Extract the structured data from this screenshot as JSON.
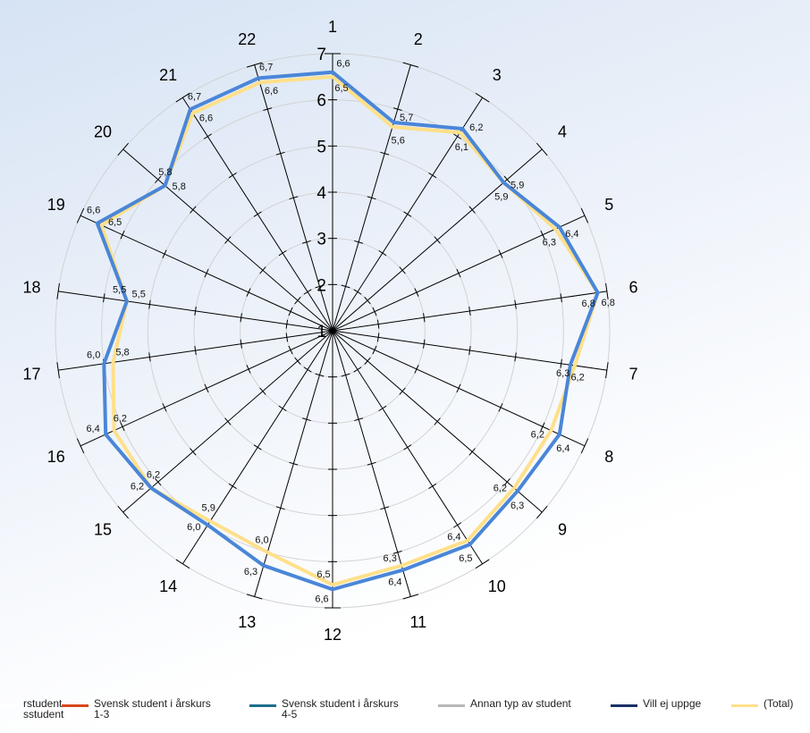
{
  "chart_data": {
    "type": "radar",
    "rmin": 1,
    "rmax": 7,
    "ring_labels": [
      "1",
      "2",
      "3",
      "4",
      "5",
      "6",
      "7"
    ],
    "categories": [
      "1",
      "2",
      "3",
      "4",
      "5",
      "6",
      "7",
      "8",
      "9",
      "10",
      "11",
      "12",
      "13",
      "14",
      "15",
      "16",
      "17",
      "18",
      "19",
      "20",
      "21",
      "22"
    ],
    "series": [
      {
        "color": "#4a86d8",
        "values": [
          6.6,
          5.7,
          6.2,
          5.9,
          6.4,
          6.8,
          6.2,
          6.4,
          6.3,
          6.5,
          6.4,
          6.6,
          6.3,
          6.0,
          6.2,
          6.4,
          6.0,
          5.5,
          6.6,
          5.8,
          6.7,
          6.7
        ],
        "labels": [
          "6,6",
          "5,7",
          "6,2",
          "5,9",
          "6,4",
          "6,8",
          "6,2",
          "6,4",
          "6,3",
          "6,5",
          "6,4",
          "6,6",
          "6,3",
          "6,0",
          "6,2",
          "6,4",
          "6,0",
          "5,5",
          "6,6",
          "5,8",
          "6,7",
          "6,7"
        ]
      },
      {
        "name": "(Total)",
        "color": "#ffe08a",
        "values": [
          6.5,
          5.6,
          6.1,
          5.9,
          6.3,
          6.8,
          6.3,
          6.2,
          6.2,
          6.4,
          6.3,
          6.5,
          6.0,
          5.9,
          6.2,
          6.2,
          5.8,
          5.5,
          6.5,
          5.8,
          6.6,
          6.6
        ],
        "labels": [
          "6,5",
          "5,6",
          "6,1",
          "5,9",
          "6,3",
          "6,8",
          "6,3",
          "6,2",
          "6,2",
          "6,4",
          "6,3",
          "6,5",
          "6,0",
          "5,9",
          "6,2",
          "6,2",
          "5,8",
          "5,5",
          "6,5",
          "5,8",
          "6,6",
          "6,6"
        ]
      }
    ]
  },
  "legend": {
    "items": [
      {
        "label": "rstudent\nsstudent",
        "color": "#ffffff",
        "x": -10
      },
      {
        "label": "Svensk student i årskurs\n1-3",
        "color": "#d9481c",
        "x": 69
      },
      {
        "label": "Svensk student i årskurs\n4-5",
        "color": "#1e6e8c",
        "x": 279
      },
      {
        "label": "Annan typ av student",
        "color": "#b8b8b8",
        "x": 490
      },
      {
        "label": "Vill ej uppge",
        "color": "#1b2f66",
        "x": 683
      },
      {
        "label": "(Total)",
        "color": "#ffe08a",
        "x": 818
      }
    ]
  }
}
